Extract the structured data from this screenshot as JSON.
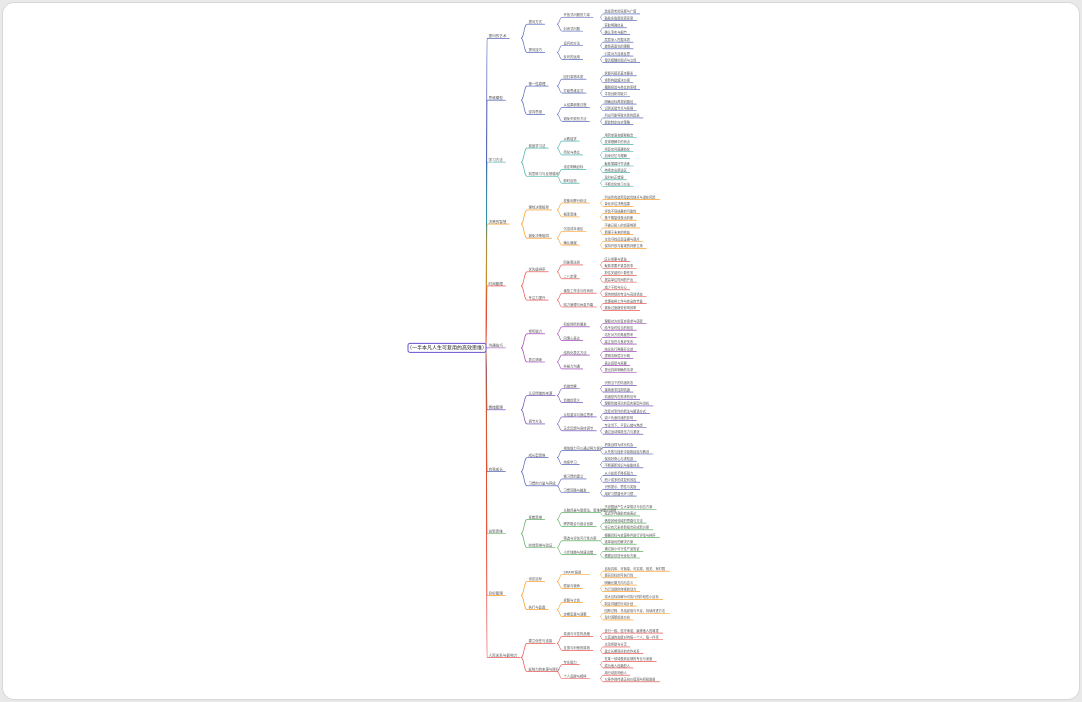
{
  "mindmap": {
    "root": "（一半本凡人生可复用的高效思维）",
    "branches": [
      {
        "label": "提问的艺术",
        "color": "#3f51b5",
        "children": [
          {
            "label": "提问方式",
            "children": [
              {
                "label": "开放式问题的力量",
                "children": [
                  "激发思考的深度与广度",
                  "鼓励多角度探索答案"
                ]
              },
              {
                "label": "封闭式问题",
                "children": [
                  "获取明确信息",
                  "确认事实与细节"
                ]
              }
            ]
          },
          {
            "label": "提问技巧",
            "children": [
              {
                "label": "追问的方法",
                "children": [
                  "层层深入挖掘本质",
                  "避免表面化的理解"
                ]
              },
              {
                "label": "反问的运用",
                "children": [
                  "引发对方自我反思",
                  "澄清模糊的观点与立场"
                ]
              }
            ]
          }
        ]
      },
      {
        "label": "思维模型",
        "color": "#3f51b5",
        "children": [
          {
            "label": "第一性原理",
            "children": [
              {
                "label": "回归事物本质",
                "children": [
                  "拆解问题至基本要素",
                  "重新构建解决方案"
                ]
              },
              {
                "label": "打破思维定式",
                "children": [
                  "摆脱经验与类比的束缚",
                  "寻找创新突破口"
                ]
              }
            ]
          },
          {
            "label": "逆向思维",
            "children": [
              {
                "label": "从结果倒推过程",
                "children": [
                  "明确目标再规划路径",
                  "识别关键节点与障碍"
                ]
              },
              {
                "label": "避免失败的方法",
                "children": [
                  "列出可能导致失败的因素",
                  "提前制定应对策略"
                ]
              }
            ]
          }
        ]
      },
      {
        "label": "学习方法",
        "color": "#26a69a",
        "children": [
          {
            "label": "费曼学习法",
            "children": [
              {
                "label": "以教促学",
                "children": [
                  "用简单语言解释概念",
                  "发现理解中的盲点"
                ]
              },
              {
                "label": "简化与类比",
                "children": [
                  "将复杂问题通俗化",
                  "加深记忆与理解"
                ]
              }
            ]
          },
          {
            "label": "刻意练习与反馈循环",
            "children": [
              {
                "label": "设定明确目标",
                "children": [
                  "聚焦薄弱环节训练",
                  "持续走出舒适区"
                ]
              },
              {
                "label": "即时反馈",
                "children": [
                  "及时纠正错误",
                  "不断优化练习方法"
                ]
              }
            ]
          }
        ]
      },
      {
        "label": "决策的智慧",
        "color": "#fb8c00",
        "children": [
          {
            "label": "理性决策框架",
            "children": [
              {
                "label": "权衡利弊分析法",
                "children": [
                  "列出所有选项及其优缺点与潜在风险",
                  "量化评估决策结果"
                ]
              },
              {
                "label": "概率思维",
                "children": [
                  "评估不同结果的可能性",
                  "基于期望值做出判断"
                ]
              }
            ]
          },
          {
            "label": "避免决策陷阱",
            "children": [
              {
                "label": "沉没成本误区",
                "children": [
                  "不被已投入的资源绑架",
                  "着眼于未来的收益"
                ]
              },
              {
                "label": "确认偏误",
                "children": [
                  "主动寻找反面证据与观点",
                  "保持开放与客观的判断立场"
                ]
              }
            ]
          }
        ]
      },
      {
        "label": "时间管理",
        "color": "#e53935",
        "children": [
          {
            "label": "优先级排序",
            "children": [
              {
                "label": "四象限法则",
                "children": [
                  "区分重要与紧急",
                  "聚焦重要不紧急的事"
                ]
              },
              {
                "label": "二八定律",
                "children": [
                  "抓住关键的少数任务",
                  "提高单位时间的产出"
                ]
              }
            ]
          },
          {
            "label": "专注力提升",
            "children": [
              {
                "label": "番茄工作法与时间块",
                "children": [
                  "减少干扰与分心",
                  "保持持续的专注与高效状态"
                ]
              },
              {
                "label": "精力管理与休息节奏",
                "children": [
                  "合理安排工作与休息的节奏",
                  "避免过度疲劳影响效率"
                ]
              }
            ]
          }
        ]
      },
      {
        "label": "沟通技巧",
        "color": "#8e24aa",
        "children": [
          {
            "label": "倾听能力",
            "children": [
              {
                "label": "积极倾听的要素",
                "children": [
                  "理解对方的真实需求与感受",
                  "给予及时恰当的回应"
                ]
              },
              {
                "label": "同理心表达",
                "children": [
                  "站在对方的角度思考",
                  "建立信任与良好关系"
                ]
              }
            ]
          },
          {
            "label": "表达清晰",
            "children": [
              {
                "label": "结构化表达方法",
                "children": [
                  "结论先行再展开论述",
                  "逻辑清晰层次分明"
                ]
              },
              {
                "label": "非暴力沟通",
                "children": [
                  "表达感受与需要",
                  "提出具体明确的请求"
                ]
              }
            ]
          }
        ]
      },
      {
        "label": "情绪管理",
        "color": "#5e35b1",
        "children": [
          {
            "label": "认识情绪的来源",
            "children": [
              {
                "label": "情绪觉察",
                "children": [
                  "识别当下的情绪状态",
                  "接纳而非压抑情绪"
                ]
              },
              {
                "label": "情绪的意义",
                "children": [
                  "情绪是内在需求的信号",
                  "理解情绪背后的真实原因与动机"
                ]
              }
            ]
          },
          {
            "label": "调节方法",
            "children": [
              {
                "label": "认知重评与换位思考",
                "children": [
                  "改变对事件的看法与解读方式",
                  "减少负面情绪的影响"
                ]
              },
              {
                "label": "正念冥想与身体调节",
                "children": [
                  "专注当下、平复心绪与焦虑",
                  "通过运动释放压力与紧张"
                ]
              }
            ]
          }
        ]
      },
      {
        "label": "自我成长",
        "color": "#3949ab",
        "children": [
          {
            "label": "成长型思维",
            "children": [
              {
                "label": "相信能力可以通过努力提升",
                "children": [
                  "把挑战视为成长机会",
                  "从失败与挫折中吸取经验与教训"
                ]
              },
              {
                "label": "持续学习",
                "children": [
                  "保持好奇心与求知欲",
                  "不断更新知识与技能体系"
                ]
              }
            ]
          },
          {
            "label": "习惯的力量与养成",
            "children": [
              {
                "label": "微习惯的建立",
                "children": [
                  "从小处着手降低阻力",
                  "积少成多形成复利效应"
                ]
              },
              {
                "label": "习惯回路与触发",
                "children": [
                  "识别提示、惯性与奖励",
                  "用好习惯替代坏习惯"
                ]
              }
            ]
          }
        ]
      },
      {
        "label": "创新思维",
        "color": "#43a047",
        "children": [
          {
            "label": "发散思维",
            "children": [
              {
                "label": "头脑风暴与联想法、思维导图的运用",
                "children": [
                  "不设限地产生大量想法与创意方案",
                  "延迟评判鼓励自由表达"
                ]
              },
              {
                "label": "跨界融合与组合创新",
                "children": [
                  "借鉴其他领域的思路与方法",
                  "将已有元素重新组合形成新方案"
                ]
              }
            ]
          },
          {
            "label": "收敛思维与验证",
            "children": [
              {
                "label": "筛选与评估可行性方案",
                "children": [
                  "根据目标与资源条件进行评估与排序",
                  "选择最优的解决方案"
                ]
              },
              {
                "label": "小步快跑与快速试错",
                "children": [
                  "通过最小可行性产品验证",
                  "根据反馈迭代优化方案"
                ]
              }
            ]
          }
        ]
      },
      {
        "label": "目标管理",
        "color": "#fb8c00",
        "children": [
          {
            "label": "设定目标",
            "children": [
              {
                "label": "SMART原则",
                "children": [
                  "目标具体、可衡量、可实现、相关、有时限",
                  "提高目标的可执行性"
                ]
              },
              {
                "label": "愿景与使命",
                "children": [
                  "明确长期方向与意义",
                  "为行动提供持续的动力"
                ]
              }
            ]
          },
          {
            "label": "执行与复盘",
            "children": [
              {
                "label": "拆解与计划",
                "children": [
                  "将大目标拆解为可执行的阶段性小目标",
                  "制定详细的行动计划"
                ]
              },
              {
                "label": "定期复盘与调整",
                "children": [
                  "回顾过程、总结经验与不足，持续改进方法",
                  "及时调整前进方向"
                ]
              }
            ]
          }
        ]
      },
      {
        "label": "人际关系与影响力",
        "color": "#e53935",
        "children": [
          {
            "label": "建立信任与连接",
            "children": [
              {
                "label": "真诚与可靠的品格",
                "children": [
                  "言行一致、信守承诺、赢得他人的尊重",
                  "以真诚的态度对待每一个人、每一件事"
                ]
              },
              {
                "label": "互惠与利他的原则",
                "children": [
                  "主动帮助与分享",
                  "建立长期良好的合作关系"
                ]
              }
            ]
          },
          {
            "label": "影响力的来源与提升",
            "children": [
              {
                "label": "专业能力",
                "children": [
                  "在某一领域做到足够的专业与深度",
                  "成为他人信赖的人"
                ]
              },
              {
                "label": "个人品牌与榜样",
                "children": [
                  "用行动影响他人",
                  "以身作则传递正向价值观与积极能量"
                ]
              }
            ]
          }
        ]
      }
    ]
  }
}
